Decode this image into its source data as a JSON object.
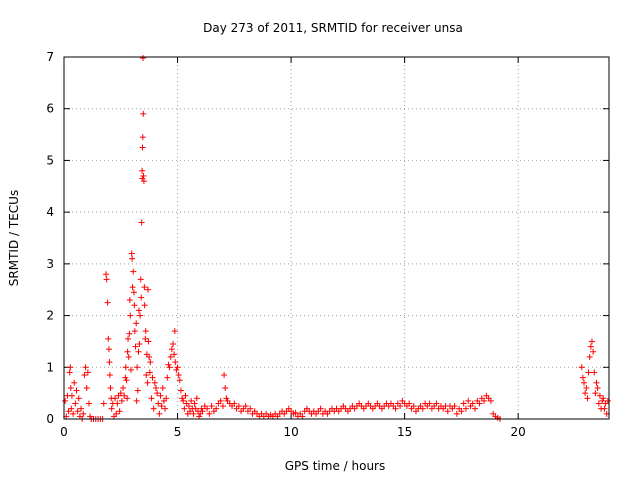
{
  "chart_data": {
    "type": "scatter",
    "title": "Day 273 of 2011, SRMTID for receiver unsa",
    "xlabel": "GPS time / hours",
    "ylabel": "SRMTID / TECUs",
    "xlim": [
      0,
      24
    ],
    "ylim": [
      0,
      7
    ],
    "xticks": [
      0,
      5,
      10,
      15,
      20
    ],
    "yticks": [
      0,
      1,
      2,
      3,
      4,
      5,
      6,
      7
    ],
    "grid": true,
    "marker": "+",
    "color": "#ff0000",
    "series": [
      {
        "name": "SRMTID",
        "points": [
          [
            0.05,
            0.35
          ],
          [
            0.1,
            0.05
          ],
          [
            0.15,
            0.45
          ],
          [
            0.2,
            0.15
          ],
          [
            0.25,
            0.9
          ],
          [
            0.28,
            1.0
          ],
          [
            0.3,
            0.6
          ],
          [
            0.32,
            0.2
          ],
          [
            0.35,
            0.45
          ],
          [
            0.4,
            0.1
          ],
          [
            0.45,
            0.7
          ],
          [
            0.5,
            0.3
          ],
          [
            0.55,
            0.55
          ],
          [
            0.6,
            0.15
          ],
          [
            0.65,
            0.4
          ],
          [
            0.7,
            0.05
          ],
          [
            0.75,
            0.2
          ],
          [
            0.8,
            0.0
          ],
          [
            0.85,
            0.1
          ],
          [
            0.9,
            0.85
          ],
          [
            0.95,
            1.0
          ],
          [
            1.0,
            0.6
          ],
          [
            1.05,
            0.9
          ],
          [
            1.1,
            0.3
          ],
          [
            1.15,
            0.05
          ],
          [
            1.2,
            0.0
          ],
          [
            1.3,
            0.0
          ],
          [
            1.4,
            0.0
          ],
          [
            1.5,
            0.0
          ],
          [
            1.6,
            0.0
          ],
          [
            1.7,
            0.0
          ],
          [
            1.75,
            0.3
          ],
          [
            1.85,
            2.8
          ],
          [
            1.88,
            2.7
          ],
          [
            1.92,
            2.25
          ],
          [
            1.95,
            1.55
          ],
          [
            1.98,
            1.35
          ],
          [
            2.0,
            1.1
          ],
          [
            2.02,
            0.85
          ],
          [
            2.05,
            0.6
          ],
          [
            2.08,
            0.4
          ],
          [
            2.1,
            0.2
          ],
          [
            2.15,
            0.3
          ],
          [
            2.2,
            0.05
          ],
          [
            2.25,
            0.4
          ],
          [
            2.3,
            0.1
          ],
          [
            2.35,
            0.3
          ],
          [
            2.4,
            0.45
          ],
          [
            2.45,
            0.15
          ],
          [
            2.5,
            0.5
          ],
          [
            2.55,
            0.35
          ],
          [
            2.6,
            0.6
          ],
          [
            2.65,
            0.45
          ],
          [
            2.7,
            0.8
          ],
          [
            2.72,
            1.0
          ],
          [
            2.75,
            0.75
          ],
          [
            2.78,
            0.4
          ],
          [
            2.8,
            1.3
          ],
          [
            2.82,
            1.55
          ],
          [
            2.85,
            1.2
          ],
          [
            2.88,
            1.65
          ],
          [
            2.9,
            2.3
          ],
          [
            2.92,
            2.0
          ],
          [
            2.95,
            0.95
          ],
          [
            2.98,
            3.2
          ],
          [
            3.0,
            3.1
          ],
          [
            3.02,
            2.55
          ],
          [
            3.05,
            2.85
          ],
          [
            3.08,
            2.45
          ],
          [
            3.1,
            2.2
          ],
          [
            3.12,
            1.7
          ],
          [
            3.15,
            1.4
          ],
          [
            3.18,
            1.85
          ],
          [
            3.2,
            0.35
          ],
          [
            3.22,
            1.0
          ],
          [
            3.25,
            0.55
          ],
          [
            3.28,
            1.3
          ],
          [
            3.3,
            2.1
          ],
          [
            3.32,
            1.45
          ],
          [
            3.35,
            2.0
          ],
          [
            3.38,
            2.7
          ],
          [
            3.4,
            2.35
          ],
          [
            3.42,
            3.8
          ],
          [
            3.44,
            4.8
          ],
          [
            3.45,
            4.65
          ],
          [
            3.46,
            5.25
          ],
          [
            3.47,
            5.45
          ],
          [
            3.48,
            6.98
          ],
          [
            3.49,
            5.9
          ],
          [
            3.5,
            4.7
          ],
          [
            3.52,
            4.6
          ],
          [
            3.54,
            2.55
          ],
          [
            3.55,
            2.2
          ],
          [
            3.58,
            1.55
          ],
          [
            3.6,
            1.7
          ],
          [
            3.62,
            0.85
          ],
          [
            3.65,
            1.25
          ],
          [
            3.68,
            0.7
          ],
          [
            3.7,
            2.5
          ],
          [
            3.72,
            1.5
          ],
          [
            3.75,
            1.2
          ],
          [
            3.78,
            0.9
          ],
          [
            3.8,
            1.1
          ],
          [
            3.85,
            0.4
          ],
          [
            3.9,
            0.8
          ],
          [
            3.95,
            0.2
          ],
          [
            4.0,
            0.7
          ],
          [
            4.05,
            0.6
          ],
          [
            4.1,
            0.5
          ],
          [
            4.15,
            0.3
          ],
          [
            4.2,
            0.1
          ],
          [
            4.25,
            0.45
          ],
          [
            4.3,
            0.25
          ],
          [
            4.35,
            0.6
          ],
          [
            4.4,
            0.35
          ],
          [
            4.45,
            0.2
          ],
          [
            4.5,
            0.4
          ],
          [
            4.55,
            0.8
          ],
          [
            4.6,
            1.05
          ],
          [
            4.65,
            1.0
          ],
          [
            4.7,
            1.2
          ],
          [
            4.75,
            1.35
          ],
          [
            4.8,
            1.45
          ],
          [
            4.85,
            1.25
          ],
          [
            4.88,
            1.7
          ],
          [
            4.9,
            1.1
          ],
          [
            4.95,
            0.95
          ],
          [
            5.0,
            1.0
          ],
          [
            5.05,
            0.85
          ],
          [
            5.1,
            0.75
          ],
          [
            5.15,
            0.55
          ],
          [
            5.2,
            0.4
          ],
          [
            5.25,
            0.35
          ],
          [
            5.3,
            0.2
          ],
          [
            5.35,
            0.45
          ],
          [
            5.4,
            0.3
          ],
          [
            5.45,
            0.1
          ],
          [
            5.5,
            0.25
          ],
          [
            5.55,
            0.15
          ],
          [
            5.6,
            0.35
          ],
          [
            5.65,
            0.2
          ],
          [
            5.7,
            0.1
          ],
          [
            5.75,
            0.3
          ],
          [
            5.8,
            0.2
          ],
          [
            5.85,
            0.4
          ],
          [
            5.9,
            0.15
          ],
          [
            5.95,
            0.05
          ],
          [
            6.0,
            0.1
          ],
          [
            6.05,
            0.2
          ],
          [
            6.1,
            0.15
          ],
          [
            6.2,
            0.25
          ],
          [
            6.3,
            0.2
          ],
          [
            6.4,
            0.1
          ],
          [
            6.5,
            0.25
          ],
          [
            6.6,
            0.15
          ],
          [
            6.7,
            0.2
          ],
          [
            6.8,
            0.3
          ],
          [
            6.9,
            0.35
          ],
          [
            7.0,
            0.25
          ],
          [
            7.05,
            0.85
          ],
          [
            7.1,
            0.6
          ],
          [
            7.15,
            0.4
          ],
          [
            7.2,
            0.35
          ],
          [
            7.3,
            0.3
          ],
          [
            7.4,
            0.25
          ],
          [
            7.5,
            0.3
          ],
          [
            7.6,
            0.2
          ],
          [
            7.7,
            0.25
          ],
          [
            7.8,
            0.15
          ],
          [
            7.9,
            0.2
          ],
          [
            8.0,
            0.25
          ],
          [
            8.1,
            0.15
          ],
          [
            8.2,
            0.2
          ],
          [
            8.3,
            0.1
          ],
          [
            8.4,
            0.15
          ],
          [
            8.5,
            0.1
          ],
          [
            8.6,
            0.05
          ],
          [
            8.7,
            0.1
          ],
          [
            8.8,
            0.05
          ],
          [
            8.9,
            0.1
          ],
          [
            9.0,
            0.05
          ],
          [
            9.1,
            0.08
          ],
          [
            9.2,
            0.05
          ],
          [
            9.3,
            0.1
          ],
          [
            9.4,
            0.05
          ],
          [
            9.5,
            0.1
          ],
          [
            9.6,
            0.15
          ],
          [
            9.7,
            0.1
          ],
          [
            9.8,
            0.15
          ],
          [
            9.9,
            0.2
          ],
          [
            10.0,
            0.15
          ],
          [
            10.1,
            0.1
          ],
          [
            10.2,
            0.12
          ],
          [
            10.3,
            0.05
          ],
          [
            10.4,
            0.1
          ],
          [
            10.5,
            0.05
          ],
          [
            10.6,
            0.15
          ],
          [
            10.7,
            0.2
          ],
          [
            10.8,
            0.15
          ],
          [
            10.9,
            0.1
          ],
          [
            11.0,
            0.15
          ],
          [
            11.1,
            0.1
          ],
          [
            11.2,
            0.15
          ],
          [
            11.3,
            0.2
          ],
          [
            11.4,
            0.1
          ],
          [
            11.5,
            0.15
          ],
          [
            11.6,
            0.1
          ],
          [
            11.7,
            0.15
          ],
          [
            11.8,
            0.2
          ],
          [
            11.9,
            0.15
          ],
          [
            12.0,
            0.2
          ],
          [
            12.1,
            0.15
          ],
          [
            12.2,
            0.2
          ],
          [
            12.3,
            0.25
          ],
          [
            12.4,
            0.2
          ],
          [
            12.5,
            0.15
          ],
          [
            12.6,
            0.2
          ],
          [
            12.7,
            0.25
          ],
          [
            12.8,
            0.2
          ],
          [
            12.9,
            0.25
          ],
          [
            13.0,
            0.3
          ],
          [
            13.1,
            0.25
          ],
          [
            13.2,
            0.2
          ],
          [
            13.3,
            0.25
          ],
          [
            13.4,
            0.3
          ],
          [
            13.5,
            0.25
          ],
          [
            13.6,
            0.2
          ],
          [
            13.7,
            0.25
          ],
          [
            13.8,
            0.3
          ],
          [
            13.9,
            0.25
          ],
          [
            14.0,
            0.2
          ],
          [
            14.1,
            0.25
          ],
          [
            14.2,
            0.3
          ],
          [
            14.3,
            0.25
          ],
          [
            14.4,
            0.3
          ],
          [
            14.5,
            0.25
          ],
          [
            14.6,
            0.2
          ],
          [
            14.7,
            0.3
          ],
          [
            14.8,
            0.25
          ],
          [
            14.9,
            0.35
          ],
          [
            15.0,
            0.3
          ],
          [
            15.1,
            0.25
          ],
          [
            15.2,
            0.3
          ],
          [
            15.3,
            0.2
          ],
          [
            15.4,
            0.25
          ],
          [
            15.5,
            0.15
          ],
          [
            15.6,
            0.2
          ],
          [
            15.7,
            0.25
          ],
          [
            15.8,
            0.2
          ],
          [
            15.9,
            0.3
          ],
          [
            16.0,
            0.25
          ],
          [
            16.1,
            0.3
          ],
          [
            16.2,
            0.2
          ],
          [
            16.3,
            0.25
          ],
          [
            16.4,
            0.3
          ],
          [
            16.5,
            0.2
          ],
          [
            16.6,
            0.25
          ],
          [
            16.7,
            0.2
          ],
          [
            16.8,
            0.25
          ],
          [
            16.9,
            0.15
          ],
          [
            17.0,
            0.25
          ],
          [
            17.1,
            0.2
          ],
          [
            17.2,
            0.25
          ],
          [
            17.3,
            0.1
          ],
          [
            17.4,
            0.2
          ],
          [
            17.5,
            0.15
          ],
          [
            17.6,
            0.3
          ],
          [
            17.7,
            0.2
          ],
          [
            17.8,
            0.35
          ],
          [
            17.9,
            0.25
          ],
          [
            18.0,
            0.3
          ],
          [
            18.1,
            0.2
          ],
          [
            18.2,
            0.35
          ],
          [
            18.3,
            0.3
          ],
          [
            18.4,
            0.4
          ],
          [
            18.5,
            0.35
          ],
          [
            18.6,
            0.45
          ],
          [
            18.7,
            0.4
          ],
          [
            18.8,
            0.35
          ],
          [
            18.9,
            0.1
          ],
          [
            19.0,
            0.05
          ],
          [
            19.1,
            0.02
          ],
          [
            19.2,
            0.0
          ],
          [
            22.8,
            1.0
          ],
          [
            22.85,
            0.8
          ],
          [
            22.9,
            0.7
          ],
          [
            22.95,
            0.5
          ],
          [
            23.0,
            0.6
          ],
          [
            23.05,
            0.4
          ],
          [
            23.1,
            0.9
          ],
          [
            23.15,
            1.2
          ],
          [
            23.2,
            1.4
          ],
          [
            23.25,
            1.5
          ],
          [
            23.3,
            1.3
          ],
          [
            23.35,
            0.9
          ],
          [
            23.4,
            0.5
          ],
          [
            23.45,
            0.7
          ],
          [
            23.5,
            0.6
          ],
          [
            23.55,
            0.3
          ],
          [
            23.6,
            0.45
          ],
          [
            23.65,
            0.2
          ],
          [
            23.7,
            0.35
          ],
          [
            23.75,
            0.4
          ],
          [
            23.8,
            0.2
          ],
          [
            23.85,
            0.3
          ],
          [
            23.9,
            0.1
          ],
          [
            23.95,
            0.35
          ]
        ]
      }
    ]
  }
}
